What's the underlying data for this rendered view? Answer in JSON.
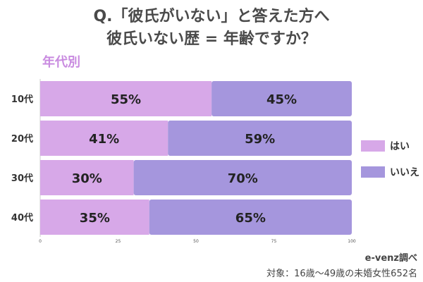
{
  "title_line1": "Q.「彼氏がいない」と答えた方へ",
  "title_line2": "彼氏いない歴 = 年齢ですか？",
  "subtitle": "年代別",
  "source": "e-venz調べ",
  "note": "対象：16歳〜49歳の未婚女性652名",
  "colors": {
    "yes": "#d7a8e8",
    "no": "#a596dd",
    "text": "#222222"
  },
  "chart_data": {
    "type": "bar",
    "orientation": "horizontal",
    "stacked": true,
    "categories": [
      "10代",
      "20代",
      "30代",
      "40代"
    ],
    "series": [
      {
        "name": "はい",
        "values": [
          55,
          41,
          30,
          35
        ],
        "labels": [
          "55%",
          "41%",
          "30%",
          "35%"
        ]
      },
      {
        "name": "いいえ",
        "values": [
          45,
          59,
          70,
          65
        ],
        "labels": [
          "45%",
          "59%",
          "70%",
          "65%"
        ]
      }
    ],
    "xlim": [
      0,
      100
    ],
    "xticks": [
      "0",
      "25",
      "50",
      "75",
      "100"
    ],
    "legend": "right"
  }
}
